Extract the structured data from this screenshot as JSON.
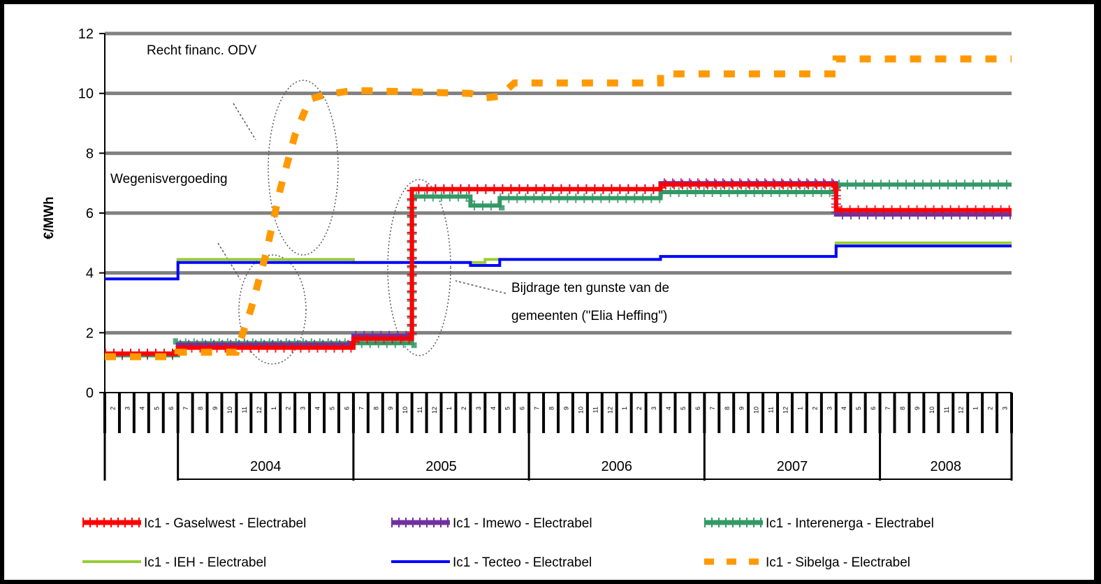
{
  "chart_data": {
    "type": "line",
    "ylabel": "€/MWh",
    "ylim": [
      0,
      12
    ],
    "yticks": [
      0,
      2,
      4,
      6,
      8,
      10,
      12
    ],
    "grid": true,
    "legend_position": "bottom",
    "x_months": 62,
    "year_labels": [
      "2004",
      "2005",
      "2006",
      "2007",
      "2008"
    ],
    "month_tick_labels": [
      "1",
      "2",
      "3",
      "4",
      "5",
      "6",
      "7",
      "8",
      "9",
      "10",
      "11",
      "12"
    ],
    "annotations": [
      "Recht financ. ODV",
      "Wegenisvergoeding",
      "Bijdrage ten gunste van de",
      "gemeenten (\"Elia Heffing\")"
    ],
    "series": [
      {
        "name": "Ic1 - Gaselwest - Electrabel",
        "color": "#ff0000",
        "style": "marker-line",
        "segments": [
          [
            0,
            1.3
          ],
          [
            5,
            1.3
          ],
          [
            5,
            1.5
          ],
          [
            17,
            1.5
          ],
          [
            17,
            1.8
          ],
          [
            21,
            1.8
          ],
          [
            21,
            6.8
          ],
          [
            38,
            6.8
          ],
          [
            38,
            6.95
          ],
          [
            50,
            6.95
          ],
          [
            50,
            6.1
          ],
          [
            62,
            6.1
          ]
        ]
      },
      {
        "name": "Ic1 - Imewo - Electrabel",
        "color": "#7030a0",
        "style": "marker-line",
        "segments": [
          [
            0,
            1.3
          ],
          [
            5,
            1.3
          ],
          [
            5,
            1.6
          ],
          [
            17,
            1.6
          ],
          [
            17,
            1.9
          ],
          [
            21,
            1.9
          ],
          [
            21,
            6.8
          ],
          [
            38,
            6.8
          ],
          [
            38,
            7.0
          ],
          [
            50,
            7.0
          ],
          [
            50,
            5.95
          ],
          [
            62,
            5.95
          ]
        ]
      },
      {
        "name": "Ic1 - Interenerga - Electrabel",
        "color": "#339966",
        "style": "marker-line",
        "segments": [
          [
            0,
            1.25
          ],
          [
            5,
            1.25
          ],
          [
            5,
            1.65
          ],
          [
            17,
            1.65
          ],
          [
            17,
            1.65
          ],
          [
            21,
            1.65
          ],
          [
            21,
            6.55
          ],
          [
            25,
            6.55
          ],
          [
            25,
            6.25
          ],
          [
            27,
            6.25
          ],
          [
            27,
            6.5
          ],
          [
            38,
            6.5
          ],
          [
            38,
            6.7
          ],
          [
            50,
            6.7
          ],
          [
            50,
            6.95
          ],
          [
            62,
            6.95
          ]
        ]
      },
      {
        "name": "Ic1 - IEH - Electrabel",
        "color": "#99cc33",
        "style": "line",
        "segments": [
          [
            0,
            3.8
          ],
          [
            5,
            3.8
          ],
          [
            5,
            4.45
          ],
          [
            17,
            4.45
          ],
          [
            17,
            4.35
          ],
          [
            26,
            4.35
          ],
          [
            26,
            4.45
          ],
          [
            38,
            4.45
          ],
          [
            38,
            4.55
          ],
          [
            50,
            4.55
          ],
          [
            50,
            5.0
          ],
          [
            62,
            5.0
          ]
        ]
      },
      {
        "name": "Ic1 - Tecteo - Electrabel",
        "color": "#0000ff",
        "style": "line",
        "segments": [
          [
            0,
            3.8
          ],
          [
            5,
            3.8
          ],
          [
            5,
            4.35
          ],
          [
            21,
            4.35
          ],
          [
            21,
            4.35
          ],
          [
            25,
            4.35
          ],
          [
            25,
            4.25
          ],
          [
            27,
            4.25
          ],
          [
            27,
            4.45
          ],
          [
            38,
            4.45
          ],
          [
            38,
            4.55
          ],
          [
            50,
            4.55
          ],
          [
            50,
            4.9
          ],
          [
            62,
            4.9
          ]
        ]
      },
      {
        "name": "Ic1 - Sibelga - Electrabel",
        "color": "#ff9900",
        "style": "dash",
        "segments": [
          [
            0,
            1.2
          ],
          [
            5,
            1.2
          ],
          [
            5,
            1.35
          ],
          [
            9,
            1.35
          ],
          [
            10,
            2.8
          ],
          [
            11,
            4.6
          ],
          [
            12,
            6.8
          ],
          [
            13,
            8.6
          ],
          [
            14,
            9.8
          ],
          [
            15,
            9.95
          ],
          [
            17,
            10.1
          ],
          [
            25,
            10.0
          ],
          [
            26,
            9.85
          ],
          [
            27,
            9.9
          ],
          [
            28,
            10.35
          ],
          [
            38,
            10.35
          ],
          [
            38,
            10.65
          ],
          [
            50,
            10.65
          ],
          [
            50,
            11.15
          ],
          [
            62,
            11.15
          ]
        ]
      }
    ]
  }
}
